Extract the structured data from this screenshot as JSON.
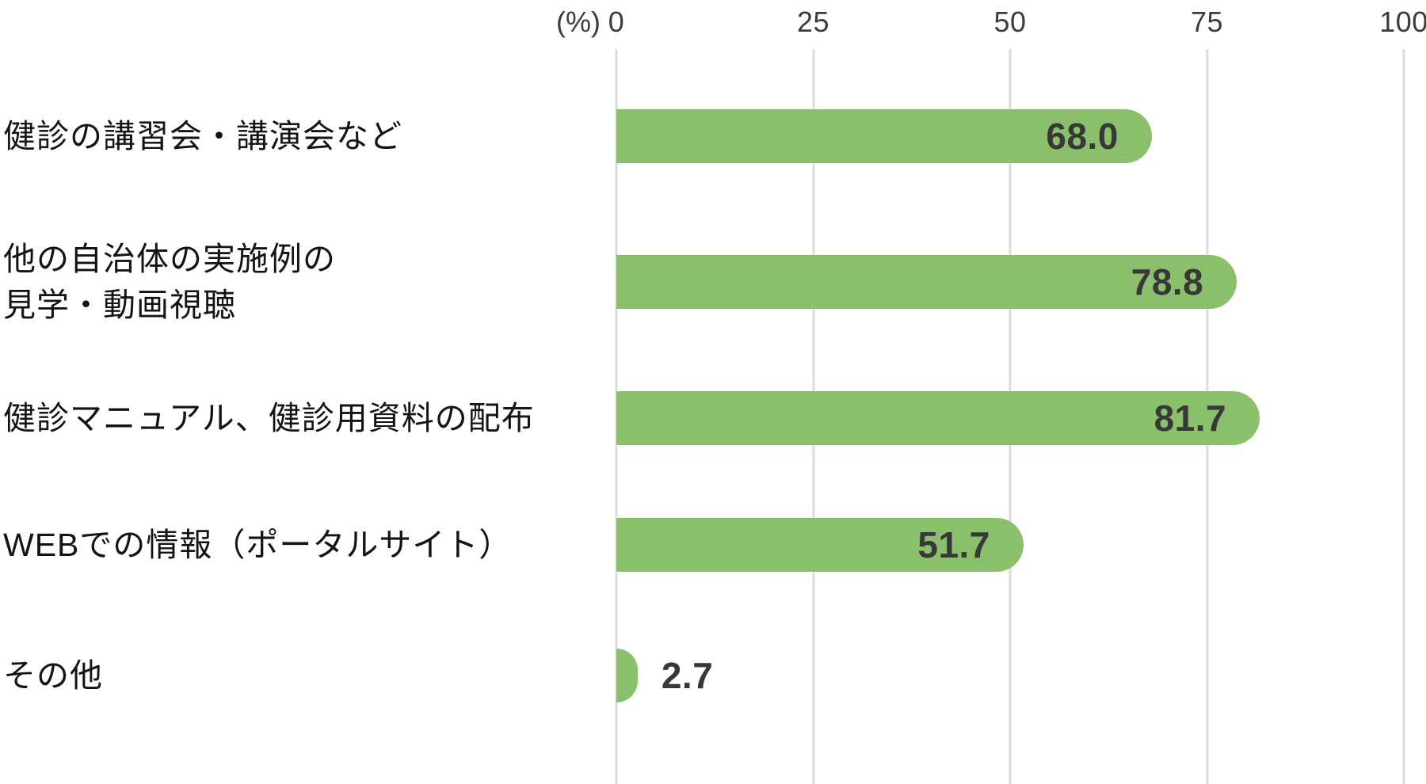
{
  "chart_data": {
    "type": "bar",
    "orientation": "horizontal",
    "title": "",
    "unit_label": "(%)",
    "categories": [
      "健診の講習会・講演会など",
      "他の自治体の実施例の\n見学・動画視聴",
      "健診マニュアル、健診用資料の配布",
      "WEBでの情報（ポータルサイト）",
      "その他"
    ],
    "values": [
      68.0,
      78.8,
      81.7,
      51.7,
      2.7
    ],
    "value_labels": [
      "68.0",
      "78.8",
      "81.7",
      "51.7",
      "2.7"
    ],
    "x_ticks": [
      "0",
      "25",
      "50",
      "75",
      "100"
    ],
    "xlim": [
      0,
      100
    ],
    "grid": true,
    "legend": false,
    "colors": {
      "bar": "#8abf6c",
      "value_text": "#383838",
      "category_text": "#141414",
      "tick_text": "#3c3c3c",
      "gridline": "#dcdcdc",
      "background": "#ffffff"
    }
  }
}
